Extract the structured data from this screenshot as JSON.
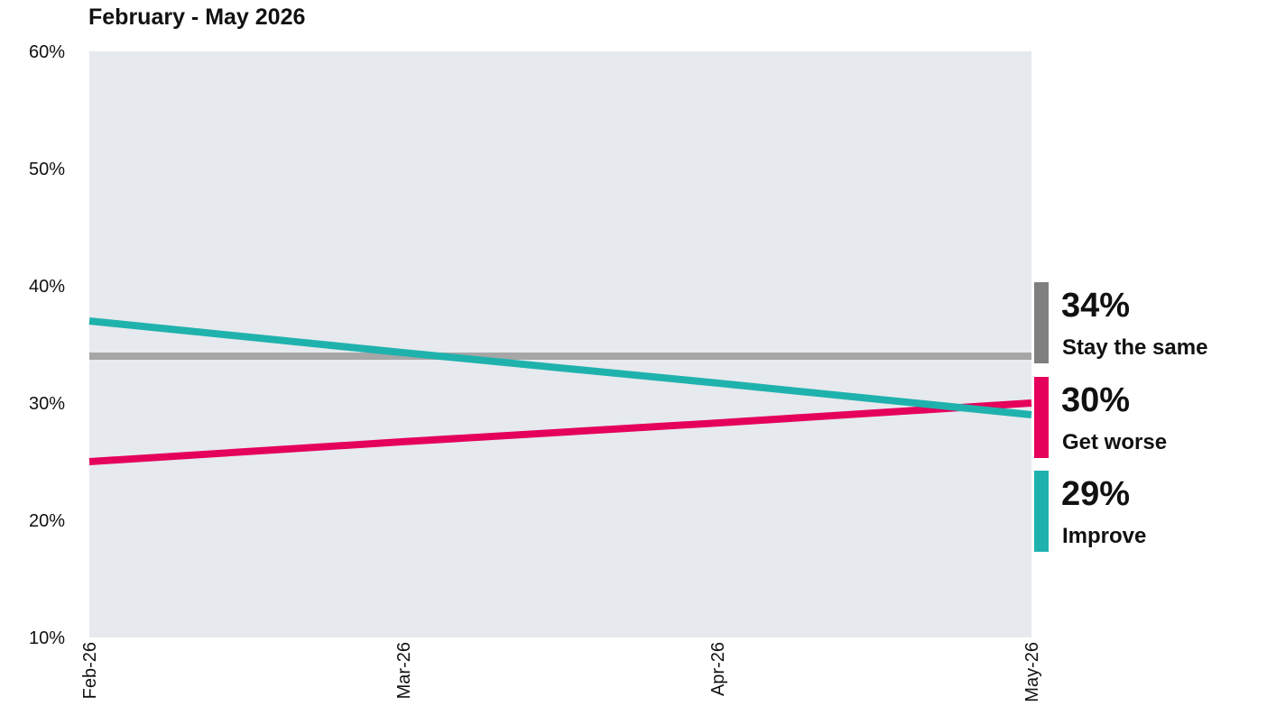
{
  "chart_data": {
    "type": "line",
    "title": "February - May 2026",
    "xlabel": "",
    "ylabel": "",
    "categories": [
      "Feb-26",
      "Mar-26",
      "Apr-26",
      "May-26"
    ],
    "ylim": [
      10,
      60
    ],
    "y_ticks": [
      "10%",
      "20%",
      "30%",
      "40%",
      "50%",
      "60%"
    ],
    "y_tick_values": [
      10,
      20,
      30,
      40,
      50,
      60
    ],
    "grid": false,
    "series": [
      {
        "name": "Stay the same",
        "values": [
          34,
          34,
          34,
          34
        ],
        "color": "#a6a6a6",
        "marker_color": "#7f7f7f",
        "end_label": "34%"
      },
      {
        "name": "Get worse",
        "values": [
          25,
          26.7,
          28.3,
          30
        ],
        "color": "#e5005b",
        "marker_color": "#e5005b",
        "end_label": "30%"
      },
      {
        "name": "Improve",
        "values": [
          37,
          34.3,
          31.7,
          29
        ],
        "color": "#1fb2ad",
        "marker_color": "#1fb2ad",
        "end_label": "29%"
      }
    ],
    "plot_background": "#e6e9ee"
  }
}
